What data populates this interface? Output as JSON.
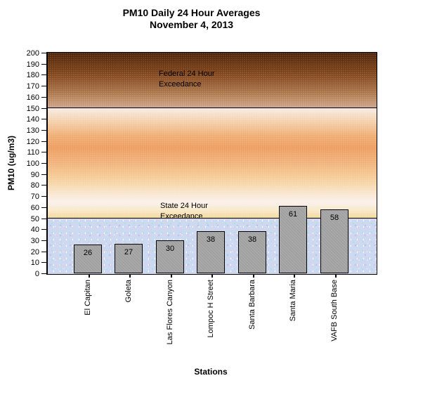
{
  "chart_data": {
    "type": "bar",
    "title": "PM10 Daily 24 Hour Averages",
    "subtitle": "November 4, 2013",
    "xlabel": "Stations",
    "ylabel": "PM10 (ug/m3)",
    "categories": [
      "El Capitan",
      "Goleta",
      "Las Flores Canyon",
      "Lompoc H Street",
      "Santa Barbara",
      "Santa Maria",
      "VAFB South Base"
    ],
    "values": [
      26,
      27,
      30,
      38,
      38,
      61,
      58
    ],
    "ylim": [
      0,
      200
    ],
    "ytick_step": 10,
    "grid": false,
    "legend": false,
    "zones": [
      {
        "name": "federal",
        "label_lines": [
          "Federal 24 Hour",
          "Exceedance"
        ],
        "from": 150,
        "to": 200
      },
      {
        "name": "state",
        "label_lines": [
          "State 24 Hour",
          "Exceedance"
        ],
        "from": 50,
        "to": 150
      },
      {
        "name": "below",
        "label_lines": [],
        "from": 0,
        "to": 50
      }
    ],
    "colors": {
      "bar_fill": "#a8a8a8",
      "bar_border": "#000000",
      "federal_zone_top": "#4d2306",
      "federal_zone_bottom": "#cda28c",
      "state_zone_peak": "#ee9d60",
      "below_zone_base": "#ccd9f0",
      "text": "#000000",
      "background": "#ffffff"
    }
  }
}
